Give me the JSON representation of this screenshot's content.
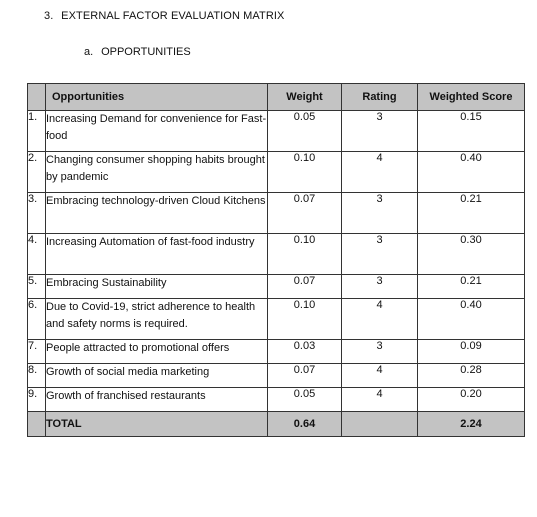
{
  "heading": {
    "number": "3.",
    "title": "EXTERNAL FACTOR EVALUATION MATRIX"
  },
  "subheading": {
    "number": "a.",
    "title": "OPPORTUNITIES"
  },
  "table": {
    "columns": [
      "Opportunities",
      "Weight",
      "Rating",
      "Weighted Score"
    ],
    "rows": [
      {
        "index": "1.",
        "factor": "Increasing Demand for convenience for Fast-food",
        "weight": "0.05",
        "rating": "3",
        "score": "0.15"
      },
      {
        "index": "2.",
        "factor": "Changing consumer shopping habits brought by pandemic",
        "weight": "0.10",
        "rating": "4",
        "score": "0.40"
      },
      {
        "index": "3.",
        "factor": "Embracing technology-driven Cloud Kitchens",
        "weight": "0.07",
        "rating": "3",
        "score": "0.21"
      },
      {
        "index": "4.",
        "factor": "Increasing Automation of fast-food industry",
        "weight": "0.10",
        "rating": "3",
        "score": "0.30"
      },
      {
        "index": "5.",
        "factor": "Embracing Sustainability",
        "weight": "0.07",
        "rating": "3",
        "score": "0.21"
      },
      {
        "index": "6.",
        "factor": "Due to Covid-19, strict adherence to health and safety norms is required.",
        "weight": "0.10",
        "rating": "4",
        "score": "0.40"
      },
      {
        "index": "7.",
        "factor": "People attracted to promotional offers",
        "weight": "0.03",
        "rating": "3",
        "score": "0.09"
      },
      {
        "index": "8.",
        "factor": "Growth of social media marketing",
        "weight": "0.07",
        "rating": "4",
        "score": "0.28"
      },
      {
        "index": "9.",
        "factor": "Growth of franchised restaurants",
        "weight": "0.05",
        "rating": "4",
        "score": "0.20"
      }
    ],
    "total": {
      "label": "TOTAL",
      "weight": "0.64",
      "rating": "",
      "score": "2.24"
    }
  },
  "colors": {
    "header_fill": "#c3c3c3",
    "border": "#333333"
  }
}
